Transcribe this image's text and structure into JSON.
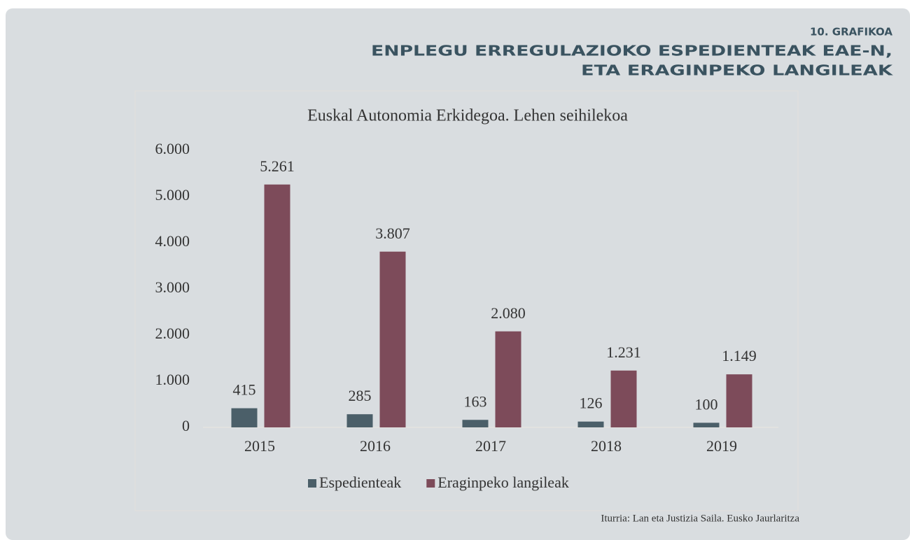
{
  "header": {
    "label": "10. GRAFIKOA",
    "title_lines": [
      "ENPLEGU ERREGULAZIOKO ESPEDIENTEAK EAE-N,",
      "ETA ERAGINPEKO LANGILEAK"
    ]
  },
  "chart_data": {
    "type": "bar",
    "title": "Euskal Autonomia Erkidegoa. Lehen seihilekoa",
    "categories": [
      "2015",
      "2016",
      "2017",
      "2018",
      "2019"
    ],
    "series": [
      {
        "name": "Espedienteak",
        "color": "#4b5f69",
        "values": [
          415,
          285,
          163,
          126,
          100
        ]
      },
      {
        "name": "Eraginpeko langileak",
        "color": "#7d4b5a",
        "values": [
          5261,
          3807,
          2080,
          1231,
          1149
        ],
        "value_labels": [
          "5.261",
          "3.807",
          "2.080",
          "1.231",
          "1.149"
        ]
      }
    ],
    "ylim": [
      0,
      6000
    ],
    "yticks": [
      0,
      {
        "value": 1000,
        "label": "1.000"
      },
      {
        "value": 2000,
        "label": "2.000"
      },
      {
        "value": 3000,
        "label": "3.000"
      },
      {
        "value": 4000,
        "label": "4.000"
      },
      {
        "value": 5000,
        "label": "5.000"
      },
      {
        "value": 6000,
        "label": "6.000"
      }
    ],
    "grid": false,
    "legend": "bottom"
  },
  "source": "Iturria: Lan eta Justizia Saila. Eusko Jaurlaritza"
}
